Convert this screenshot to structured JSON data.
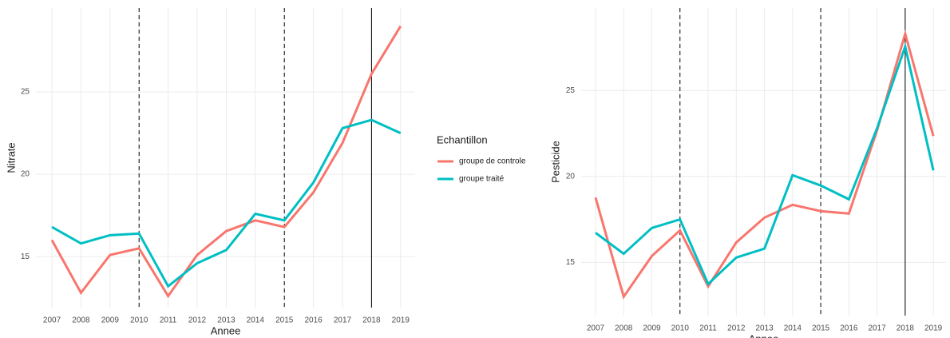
{
  "chart_data": [
    {
      "type": "line",
      "x_label": "Annee",
      "y_label": "Nitrate",
      "legend_title": "Echantillon",
      "x": [
        2007,
        2008,
        2009,
        2010,
        2011,
        2012,
        2013,
        2014,
        2015,
        2016,
        2017,
        2018,
        2019
      ],
      "xlim": [
        2006.45,
        2019.5
      ],
      "xticks": [
        2007,
        2008,
        2009,
        2010,
        2011,
        2012,
        2013,
        2014,
        2015,
        2016,
        2017,
        2018,
        2019
      ],
      "ylim": [
        11.9,
        30.1
      ],
      "yticks": [
        15,
        20,
        25
      ],
      "grid": true,
      "vlines": [
        {
          "x": 2010,
          "style": "dashed"
        },
        {
          "x": 2015,
          "style": "dashed"
        },
        {
          "x": 2018,
          "style": "solid"
        }
      ],
      "series": [
        {
          "name": "groupe de controle",
          "color": "#F8766D",
          "values": [
            16.0,
            12.8,
            15.1,
            15.5,
            12.6,
            15.1,
            16.55,
            17.2,
            16.8,
            18.9,
            21.9,
            26.1,
            29.0
          ]
        },
        {
          "name": "groupe traité",
          "color": "#00BFC4",
          "values": [
            16.8,
            15.8,
            16.3,
            16.4,
            13.2,
            14.6,
            15.4,
            17.6,
            17.2,
            19.5,
            22.8,
            23.3,
            22.5
          ]
        }
      ]
    },
    {
      "type": "line",
      "x_label": "Annee",
      "y_label": "Pesticide",
      "x": [
        2007,
        2008,
        2009,
        2010,
        2011,
        2012,
        2013,
        2014,
        2015,
        2016,
        2017,
        2018,
        2019
      ],
      "xlim": [
        2006.49,
        2019.45
      ],
      "xticks": [
        2007,
        2008,
        2009,
        2010,
        2011,
        2012,
        2013,
        2014,
        2015,
        2016,
        2017,
        2018,
        2019
      ],
      "ylim": [
        11.9,
        29.8
      ],
      "yticks": [
        15,
        20,
        25
      ],
      "grid": true,
      "vlines": [
        {
          "x": 2010,
          "style": "dashed"
        },
        {
          "x": 2015,
          "style": "dashed"
        },
        {
          "x": 2018,
          "style": "solid"
        }
      ],
      "series": [
        {
          "color": "#F8766D",
          "values": [
            18.77,
            13.0,
            15.37,
            16.86,
            13.6,
            16.16,
            17.6,
            18.35,
            17.98,
            17.84,
            22.67,
            28.3,
            22.35
          ]
        },
        {
          "color": "#00BFC4",
          "values": [
            16.72,
            15.5,
            17.0,
            17.5,
            13.74,
            15.28,
            15.8,
            20.07,
            19.47,
            18.67,
            22.8,
            27.56,
            20.35
          ]
        }
      ]
    }
  ]
}
